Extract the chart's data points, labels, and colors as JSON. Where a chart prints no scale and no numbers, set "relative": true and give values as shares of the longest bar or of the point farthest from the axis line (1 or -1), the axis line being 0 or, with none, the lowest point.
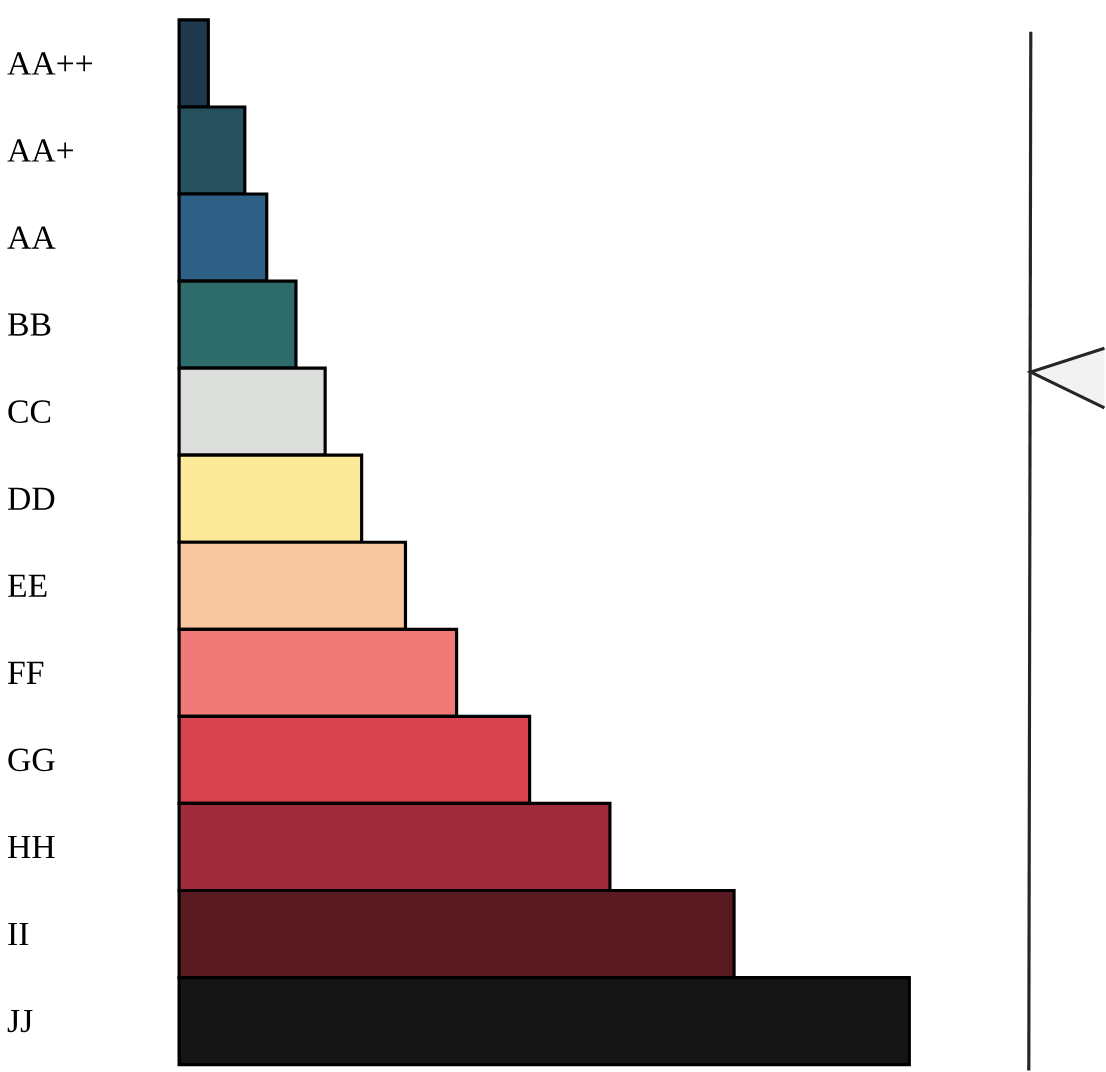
{
  "chart_data": {
    "type": "bar",
    "orientation": "horizontal",
    "relative": true,
    "categories": [
      "AA++",
      "AA+",
      "AA",
      "BB",
      "CC",
      "DD",
      "EE",
      "FF",
      "GG",
      "HH",
      "II",
      "JJ"
    ],
    "values": [
      0.04,
      0.09,
      0.12,
      0.16,
      0.2,
      0.25,
      0.31,
      0.38,
      0.48,
      0.59,
      0.76,
      1
    ],
    "colors": [
      "#1f3a4f",
      "#27505f",
      "#2e5f85",
      "#2e6b6b",
      "#dcdedc",
      "#fce99a",
      "#f8c7a0",
      "#f07a78",
      "#d9424f",
      "#a02b3c",
      "#5a1a22",
      "#151515"
    ]
  }
}
